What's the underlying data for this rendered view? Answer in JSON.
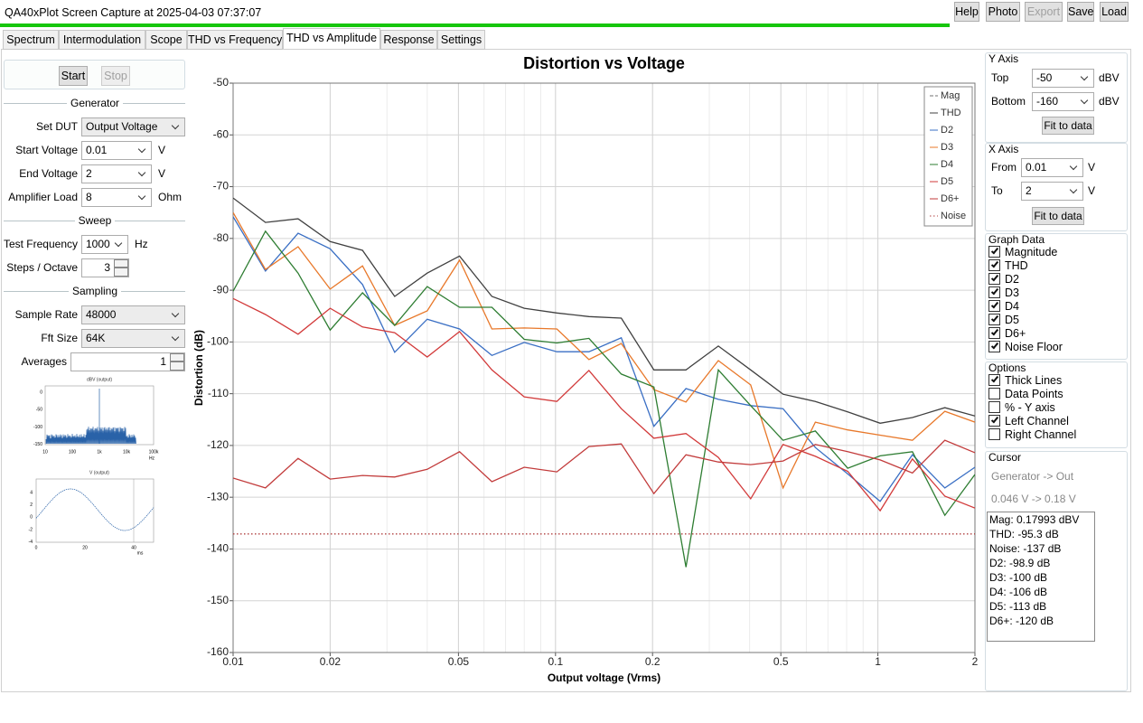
{
  "window": {
    "title": "QA40xPlot Screen Capture at 2025-04-03 07:37:07",
    "buttons": [
      {
        "label": "Help",
        "enabled": true
      },
      {
        "label": "Photo",
        "enabled": true
      },
      {
        "label": "Export",
        "enabled": false
      },
      {
        "label": "Save",
        "enabled": true
      },
      {
        "label": "Load",
        "enabled": true
      }
    ]
  },
  "tabs": [
    "Spectrum",
    "Intermodulation",
    "Scope",
    "THD vs Frequency",
    "THD vs Amplitude",
    "Response",
    "Settings"
  ],
  "active_tab": 4,
  "left_panel": {
    "start": "Start",
    "stop": "Stop",
    "stop_enabled": false,
    "sections": [
      {
        "heading": "Generator",
        "fields": [
          {
            "label": "Set DUT",
            "value": "Output Voltage",
            "control": "combo",
            "editable": false
          },
          {
            "label": "Start Voltage",
            "value": "0.01",
            "unit": "V",
            "control": "combo",
            "editable": true
          },
          {
            "label": "End Voltage",
            "value": "2",
            "unit": "V",
            "control": "combo",
            "editable": true
          },
          {
            "label": "Amplifier Load",
            "value": "8",
            "unit": "Ohm",
            "control": "combo",
            "editable": true
          }
        ]
      },
      {
        "heading": "Sweep",
        "fields": [
          {
            "label": "Test Frequency",
            "value": "1000",
            "unit": "Hz",
            "control": "combo",
            "editable": true
          },
          {
            "label": "Steps / Octave",
            "value": "3",
            "control": "spin",
            "editable": true
          }
        ]
      },
      {
        "heading": "Sampling",
        "fields": [
          {
            "label": "Sample Rate",
            "value": "48000",
            "control": "combo",
            "editable": false
          },
          {
            "label": "Fft Size",
            "value": "64K",
            "control": "combo",
            "editable": false
          },
          {
            "label": "Averages",
            "value": "1",
            "control": "spin",
            "editable": true
          }
        ]
      }
    ],
    "thumbnails": [
      {
        "title": "dBV (output)",
        "yticks": [
          "0",
          "-50",
          "-100",
          "-150"
        ],
        "xticks": [
          "10",
          "100",
          "1k",
          "10k",
          "100k"
        ],
        "x_unit": "Hz"
      },
      {
        "title": "V (output)",
        "yticks": [
          "4",
          "2",
          "0",
          "-2",
          "-4"
        ],
        "xticks": [
          "0",
          "20",
          "40"
        ],
        "x_unit": "ms"
      }
    ]
  },
  "chart_data": {
    "type": "line",
    "title": "Distortion vs Voltage",
    "x_label": "Output voltage (Vrms)",
    "y_label": "Distortion (dB)",
    "x_scale": "log",
    "x": [
      0.01,
      0.0126,
      0.0159,
      0.02,
      0.0252,
      0.0317,
      0.04,
      0.0504,
      0.0635,
      0.08,
      0.101,
      0.127,
      0.16,
      0.202,
      0.254,
      0.32,
      0.403,
      0.508,
      0.64,
      0.806,
      1.016,
      1.28,
      1.613,
      2
    ],
    "series": [
      {
        "name": "Mag",
        "color": "#707070",
        "dash": "dashed",
        "values": [
          null,
          null,
          null,
          null,
          null,
          null,
          null,
          null,
          null,
          null,
          null,
          null,
          null,
          null,
          null,
          null,
          null,
          null,
          null,
          null,
          null,
          null,
          null,
          null
        ]
      },
      {
        "name": "THD",
        "color": "#404040",
        "dash": "solid",
        "values": [
          -72.2,
          -76.9,
          -76.2,
          -80.6,
          -82.3,
          -91.2,
          -86.7,
          -83.4,
          -91.2,
          -93.5,
          -94.4,
          -95.1,
          -95.4,
          -105.4,
          -105.4,
          -100.8,
          -105.4,
          -110.1,
          -111.5,
          -113.5,
          -115.7,
          -114.6,
          -112.7,
          -114.3
        ]
      },
      {
        "name": "D2",
        "color": "#3a6fc4",
        "dash": "solid",
        "values": [
          -75.8,
          -86.3,
          -79,
          -82,
          -88.9,
          -102,
          -95.6,
          -97.5,
          -102.6,
          -100.1,
          -101.9,
          -101.9,
          -99.2,
          -116.3,
          -109,
          -111.1,
          -112.3,
          -112.9,
          -120.4,
          -125.5,
          -130.8,
          -121.8,
          -128.2,
          -124.2
        ]
      },
      {
        "name": "D3",
        "color": "#e8782a",
        "dash": "solid",
        "values": [
          -75,
          -86,
          -81.6,
          -89.8,
          -85.3,
          -96.8,
          -94,
          -84.2,
          -97.5,
          -97.3,
          -97.5,
          -103.4,
          -100.3,
          -109.2,
          -111.6,
          -103.6,
          -108.3,
          -128.2,
          -115.5,
          -117,
          -118,
          -119,
          -113.4,
          -115.5
        ]
      },
      {
        "name": "D4",
        "color": "#2e7d32",
        "dash": "solid",
        "values": [
          -90.2,
          -78.6,
          -86.7,
          -97.7,
          -90.5,
          -96.8,
          -89.3,
          -93.3,
          -93.3,
          -99.5,
          -100.2,
          -99.3,
          -106.2,
          -108.7,
          -143.5,
          -105.4,
          -112.3,
          -119,
          -117.2,
          -124.4,
          -122,
          -121.2,
          -133.5,
          -125.6
        ]
      },
      {
        "name": "D5",
        "color": "#d23a3a",
        "dash": "solid",
        "values": [
          -91.6,
          -94.7,
          -98.5,
          -93.5,
          -97.1,
          -98.2,
          -102.9,
          -98,
          -105.4,
          -110.6,
          -111.5,
          -105.5,
          -112.9,
          -118.6,
          -117.7,
          -122.3,
          -130.3,
          -119.8,
          -122.1,
          -125,
          -132.6,
          -122.6,
          -129.8,
          -132.1
        ]
      },
      {
        "name": "D6+",
        "color": "#c23b3b",
        "dash": "solid",
        "values": [
          -126.3,
          -128.2,
          -122.5,
          -126.5,
          -125.8,
          -126.1,
          -124.6,
          -121.2,
          -127,
          -124.2,
          -125.1,
          -120.2,
          -119.7,
          -129.3,
          -121.8,
          -123.2,
          -123.7,
          -123,
          -119.8,
          -121.2,
          -122.8,
          -125.3,
          -119,
          -121.4
        ]
      },
      {
        "name": "Noise",
        "color": "#b04040",
        "dash": "dotted",
        "values": [
          -137.1,
          -137.1,
          -137.1,
          -137.1,
          -137.1,
          -137.1,
          -137.1,
          -137.1,
          -137.1,
          -137.1,
          -137.1,
          -137.1,
          -137.1,
          -137.1,
          -137.1,
          -137.1,
          -137.1,
          -137.1,
          -137.1,
          -137.1,
          -137.1,
          -137.1,
          -137.1,
          -137.1
        ]
      }
    ],
    "xlim": [
      0.01,
      2
    ],
    "ylim": [
      -160,
      -50
    ],
    "xticks": [
      0.01,
      0.02,
      0.05,
      0.1,
      0.2,
      0.5,
      1,
      2
    ],
    "yticks": [
      -50,
      -60,
      -70,
      -80,
      -90,
      -100,
      -110,
      -120,
      -130,
      -140,
      -150,
      -160
    ],
    "grid": true,
    "legend": "top-right"
  },
  "right_panel": {
    "y_axis": {
      "heading": "Y Axis",
      "fields": [
        {
          "label": "Top",
          "value": "-50",
          "unit": "dBV"
        },
        {
          "label": "Bottom",
          "value": "-160",
          "unit": "dBV"
        }
      ],
      "button": "Fit to data"
    },
    "x_axis": {
      "heading": "X Axis",
      "fields": [
        {
          "label": "From",
          "value": "0.01",
          "unit": "V"
        },
        {
          "label": "To",
          "value": "2",
          "unit": "V"
        }
      ],
      "button": "Fit to data"
    },
    "graph_data": {
      "heading": "Graph Data",
      "items": [
        {
          "label": "Magnitude",
          "checked": true
        },
        {
          "label": "THD",
          "checked": true
        },
        {
          "label": "D2",
          "checked": true
        },
        {
          "label": "D3",
          "checked": true
        },
        {
          "label": "D4",
          "checked": true
        },
        {
          "label": "D5",
          "checked": true
        },
        {
          "label": "D6+",
          "checked": true
        },
        {
          "label": "Noise Floor",
          "checked": true
        }
      ]
    },
    "options": {
      "heading": "Options",
      "items": [
        {
          "label": "Thick Lines",
          "checked": true
        },
        {
          "label": "Data Points",
          "checked": false
        },
        {
          "label": "% - Y axis",
          "checked": false
        },
        {
          "label": "Left Channel",
          "checked": true
        },
        {
          "label": "Right Channel",
          "checked": false
        }
      ]
    },
    "cursor": {
      "heading": "Cursor",
      "source": "Generator -> Out",
      "range": "0.046 V -> 0.18 V",
      "readout": [
        "Mag: 0.17993 dBV",
        "THD: -95.3 dB",
        "Noise: -137 dB",
        "D2: -98.9 dB",
        "D3: -100 dB",
        "D4: -106 dB",
        "D5: -113 dB",
        "D6+: -120 dB"
      ]
    }
  }
}
